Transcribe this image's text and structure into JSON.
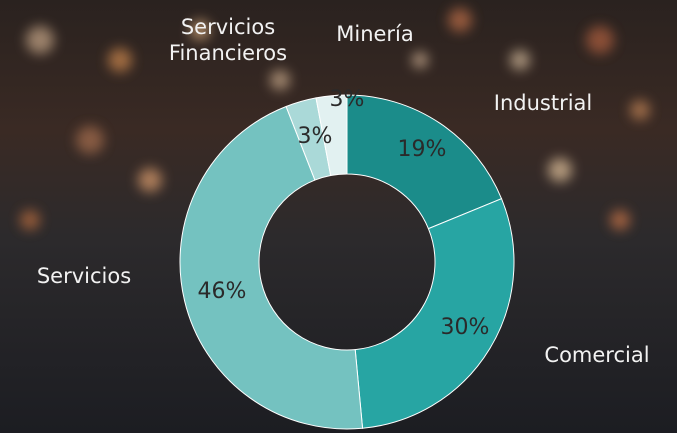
{
  "chart_data": {
    "type": "donut",
    "categories": [
      "Industrial",
      "Comercial",
      "Servicios",
      "Servicios Financieros",
      "Minería"
    ],
    "values": [
      19,
      30,
      46,
      3,
      3
    ],
    "value_labels": [
      "19%",
      "30%",
      "46%",
      "3%",
      "3%"
    ],
    "colors": [
      "#1b8c8a",
      "#27a5a3",
      "#74c2c0",
      "#aad9d8",
      "#e2f1f1"
    ]
  }
}
